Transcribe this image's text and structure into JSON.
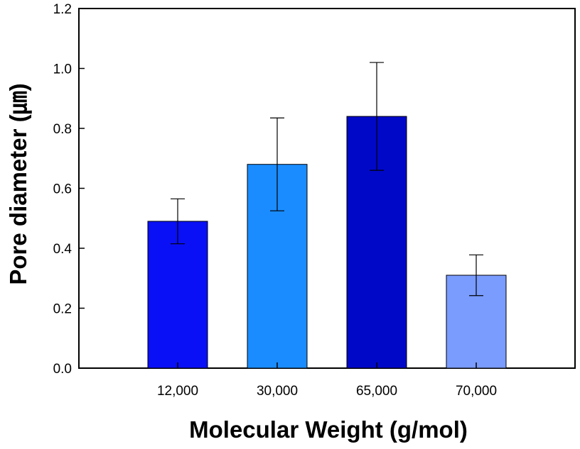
{
  "chart_data": {
    "type": "bar",
    "title": "",
    "xlabel": "Molecular Weight (g/mol)",
    "ylabel": "Pore diameter (㎛)",
    "ylim": [
      0,
      1.2
    ],
    "yticks": [
      "0.0",
      "0.2",
      "0.4",
      "0.6",
      "0.8",
      "1.0",
      "1.2"
    ],
    "ytick_values": [
      0,
      0.2,
      0.4,
      0.6,
      0.8,
      1.0,
      1.2
    ],
    "categories": [
      "12,000",
      "30,000",
      "65,000",
      "70,000"
    ],
    "values": [
      0.49,
      0.68,
      0.84,
      0.31
    ],
    "errors": [
      0.075,
      0.155,
      0.18,
      0.068
    ],
    "bar_colors": [
      "#0a10f5",
      "#1a8cff",
      "#0008c8",
      "#7a9cff"
    ],
    "grid": false,
    "legend": "none"
  }
}
